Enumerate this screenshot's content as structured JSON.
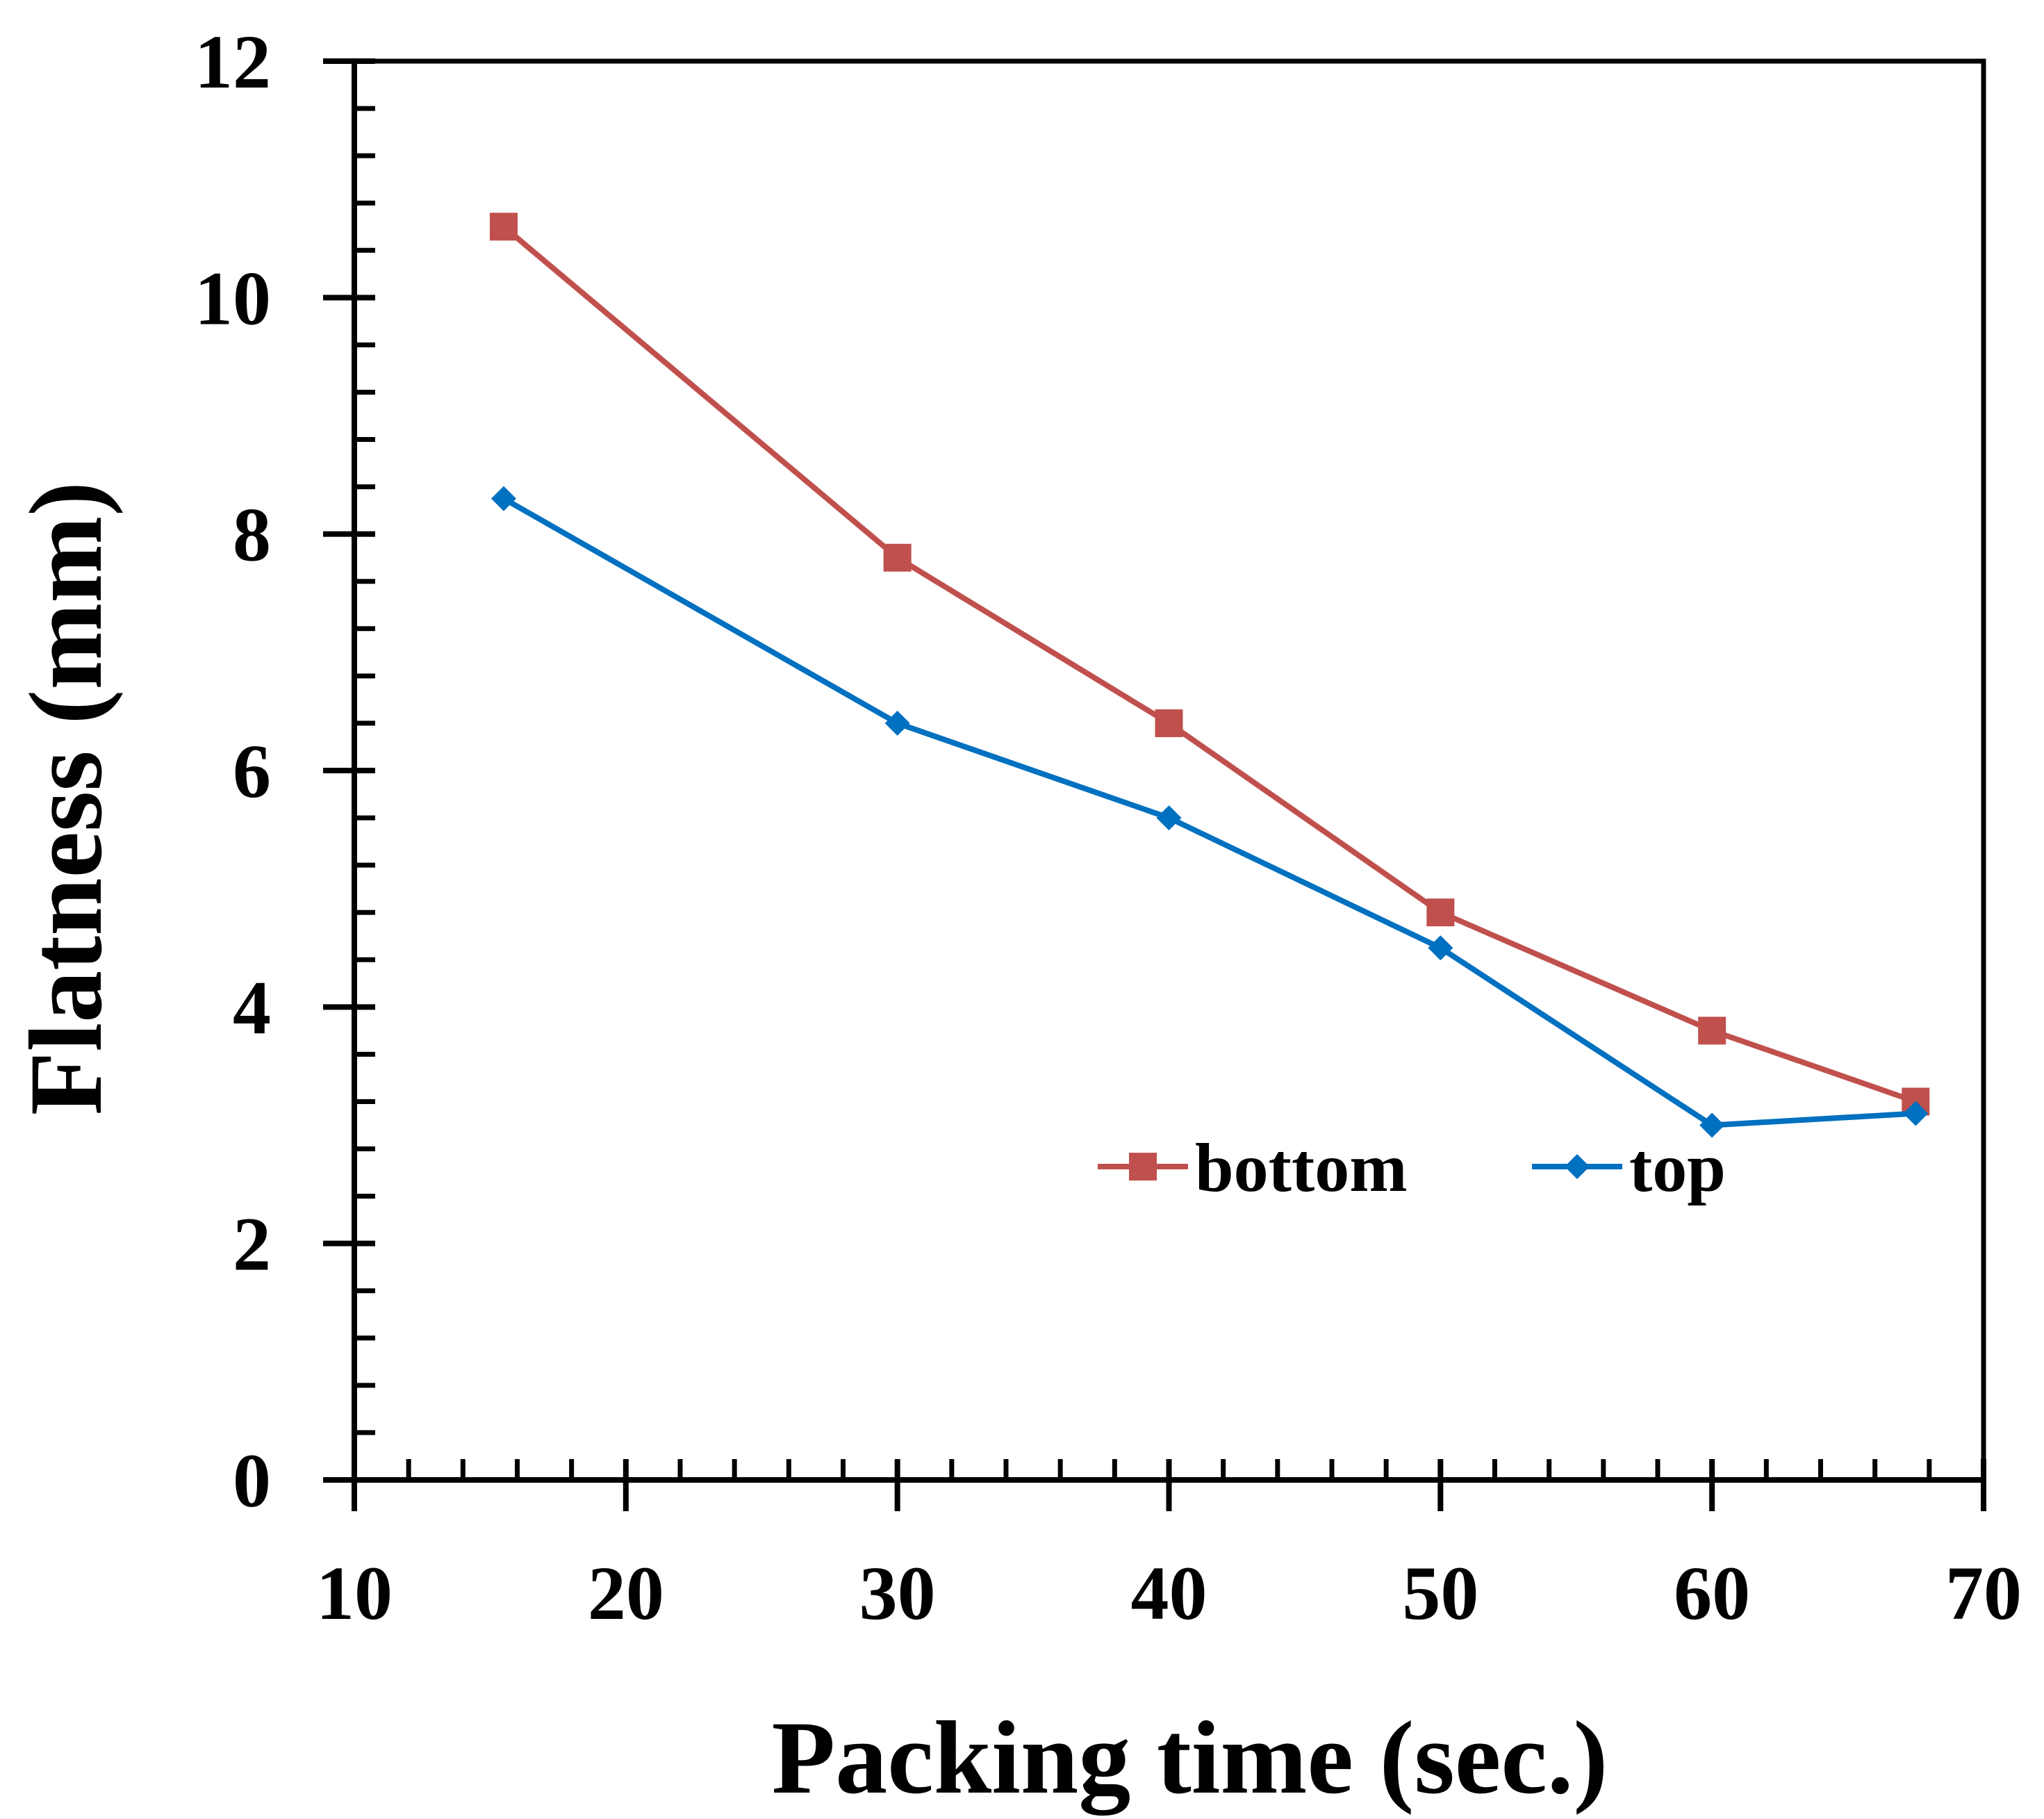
{
  "chart_data": {
    "type": "line",
    "title": "",
    "xlabel": "Packing time (sec.)",
    "ylabel": "Flatness (mm)",
    "xlim": [
      10,
      70
    ],
    "ylim": [
      0,
      12
    ],
    "xticks": [
      10,
      20,
      30,
      40,
      50,
      60,
      70
    ],
    "yticks": [
      0,
      2,
      4,
      6,
      8,
      10,
      12
    ],
    "xtick_labels": [
      "10",
      "20",
      "30",
      "40",
      "50",
      "60",
      "70"
    ],
    "ytick_labels": [
      "0",
      "2",
      "4",
      "6",
      "8",
      "10",
      "12"
    ],
    "grid": false,
    "legend_position": "bottom-right",
    "series": [
      {
        "name": "bottom",
        "color": "#c0504d",
        "marker": "square",
        "x": [
          15.5,
          30,
          40,
          50,
          60,
          67.5
        ],
        "y": [
          10.6,
          7.8,
          6.4,
          4.8,
          3.8,
          3.2
        ]
      },
      {
        "name": "top",
        "color": "#0070c0",
        "marker": "diamond",
        "x": [
          15.5,
          30,
          40,
          50,
          60,
          67.5
        ],
        "y": [
          8.3,
          6.4,
          5.6,
          4.5,
          3.0,
          3.1
        ]
      }
    ]
  }
}
